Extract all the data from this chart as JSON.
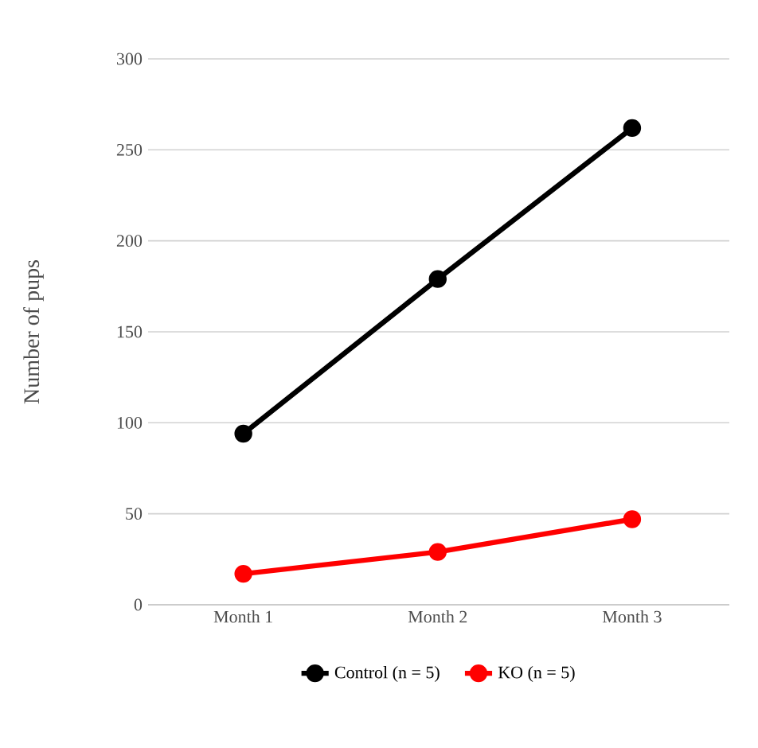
{
  "chart_data": {
    "type": "line",
    "ylabel": "Number of pups",
    "categories": [
      "Month 1",
      "Month 2",
      "Month 3"
    ],
    "series": [
      {
        "name": "Control (n = 5)",
        "color": "#000000",
        "values": [
          94,
          179,
          262
        ]
      },
      {
        "name": "KO (n = 5)",
        "color": "#ff0000",
        "values": [
          17,
          29,
          47
        ]
      }
    ],
    "ylim": [
      0,
      300
    ],
    "yticks": [
      0,
      50,
      100,
      150,
      200,
      250,
      300
    ],
    "grid": "y",
    "legend": "bottom",
    "marker": "circle",
    "line_style": "solid"
  }
}
